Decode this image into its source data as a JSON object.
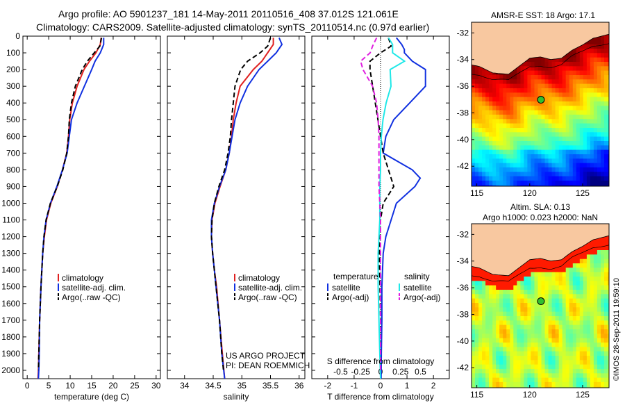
{
  "title": {
    "line1": "Argo profile: AO 5901237_181 14-May-2011 20110516_408 37.012S 121.061E",
    "line2": "Climatology: CARS2009. Satellite-adjusted climatology: synTS_20110514.nc (0.97d earlier)"
  },
  "colors": {
    "climatology": "#e02020",
    "satellite": "#1030e0",
    "argo": "#000000",
    "salinity_satellite": "#20e8e8",
    "salinity_argo": "#e020e0",
    "land": "#f8c8a0"
  },
  "chart_data": [
    {
      "type": "line",
      "name": "temperature",
      "xlabel": "temperature (deg C)",
      "xlim": [
        -1,
        31
      ],
      "xticks": [
        0,
        5,
        10,
        15,
        20,
        25,
        30
      ],
      "ylim": [
        2050,
        0
      ],
      "yticks": [
        0,
        100,
        200,
        300,
        400,
        500,
        600,
        700,
        800,
        900,
        1000,
        1100,
        1200,
        1300,
        1400,
        1500,
        1600,
        1700,
        1800,
        1900,
        2000
      ],
      "legend": [
        "climatology",
        "satellite-adj. clim.",
        "Argo(..raw -QC)"
      ],
      "series": [
        {
          "name": "climatology",
          "style": "solid",
          "color": "climatology",
          "depth": [
            10,
            50,
            100,
            150,
            200,
            300,
            400,
            500,
            600,
            700,
            800,
            900,
            1000,
            1100,
            1200,
            1300,
            1500,
            1700,
            1900,
            2000,
            2050
          ],
          "values": [
            17.2,
            17.0,
            16.0,
            14.5,
            13.2,
            11.6,
            10.5,
            9.9,
            9.6,
            9.2,
            8.2,
            7.0,
            5.5,
            4.5,
            4.0,
            3.6,
            3.2,
            2.9,
            2.7,
            2.6,
            2.5
          ]
        },
        {
          "name": "satellite-adj. clim.",
          "style": "solid",
          "color": "satellite",
          "depth": [
            10,
            50,
            100,
            150,
            200,
            300,
            400,
            500,
            600,
            700,
            800,
            900,
            1000,
            1100,
            1200,
            1300,
            1500,
            1700,
            1900,
            2000,
            2050
          ],
          "values": [
            17.8,
            17.8,
            17.0,
            15.8,
            15.0,
            13.3,
            11.6,
            10.3,
            9.8,
            9.3,
            8.2,
            6.9,
            5.4,
            4.4,
            3.9,
            3.6,
            3.2,
            2.9,
            2.8,
            2.7,
            2.6
          ]
        },
        {
          "name": "Argo(..raw -QC)",
          "style": "dashed",
          "color": "argo",
          "depth": [
            10,
            60,
            100,
            150,
            200,
            300,
            400,
            500,
            600,
            700,
            800,
            900,
            1000,
            1100,
            1200,
            1300,
            1500,
            1700,
            1900,
            2000
          ],
          "values": [
            17.3,
            16.9,
            15.6,
            14.0,
            12.8,
            11.2,
            10.3,
            9.8,
            9.6,
            9.2,
            8.3,
            7.0,
            5.4,
            4.4,
            3.9,
            3.6,
            3.2,
            2.9,
            2.7,
            2.6
          ]
        }
      ]
    },
    {
      "type": "line",
      "name": "salinity",
      "xlabel": "salinity",
      "xlim": [
        33.7,
        36.1
      ],
      "xticks": [
        34,
        34.5,
        35,
        35.5,
        36
      ],
      "xticklabels": [
        "34",
        "34.5",
        "35",
        "35.5",
        "36"
      ],
      "ylim": [
        2050,
        0
      ],
      "legend": [
        "climatology",
        "satellite-adj. clim.",
        "Argo(..raw -QC)"
      ],
      "annotation": [
        "US ARGO PROJECT",
        "PI: DEAN ROEMMICH"
      ],
      "series": [
        {
          "name": "climatology",
          "style": "solid",
          "color": "climatology",
          "depth": [
            10,
            50,
            100,
            150,
            200,
            300,
            400,
            500,
            600,
            700,
            800,
            900,
            1000,
            1100,
            1200,
            1300,
            1400,
            1500,
            1700,
            1900,
            2050
          ],
          "values": [
            35.55,
            35.55,
            35.45,
            35.35,
            35.2,
            34.97,
            34.9,
            34.85,
            34.82,
            34.78,
            34.72,
            34.62,
            34.53,
            34.48,
            34.47,
            34.49,
            34.52,
            34.56,
            34.61,
            34.66,
            34.7
          ]
        },
        {
          "name": "satellite-adj. clim.",
          "style": "solid",
          "color": "satellite",
          "depth": [
            10,
            50,
            100,
            150,
            200,
            300,
            400,
            500,
            600,
            700,
            800,
            900,
            1000,
            1100,
            1200,
            1300,
            1400,
            1500,
            1700,
            1900,
            2050
          ],
          "values": [
            35.65,
            35.7,
            35.6,
            35.45,
            35.3,
            35.1,
            34.97,
            34.88,
            34.83,
            34.78,
            34.72,
            34.61,
            34.52,
            34.47,
            34.47,
            34.49,
            34.52,
            34.55,
            34.61,
            34.65,
            34.7
          ]
        },
        {
          "name": "Argo(..raw -QC)",
          "style": "dashed",
          "color": "argo",
          "depth": [
            10,
            60,
            100,
            150,
            200,
            300,
            400,
            500,
            600,
            700,
            800,
            900,
            1000,
            1100,
            1200,
            1300,
            1500,
            1700,
            1900,
            2000
          ],
          "values": [
            35.5,
            35.45,
            35.32,
            35.1,
            34.98,
            34.88,
            34.85,
            34.82,
            34.8,
            34.76,
            34.7,
            34.6,
            34.52,
            34.48,
            34.47,
            34.49,
            34.55,
            34.61,
            34.65,
            34.68
          ]
        }
      ]
    },
    {
      "type": "line",
      "name": "differences",
      "xlabel": "T difference from climatology",
      "xlabel2": "S difference from climatology",
      "xlim": [
        -2.6,
        2.6
      ],
      "xticks": [
        -2,
        -1,
        0,
        1,
        2
      ],
      "sticks": [
        -0.5,
        -0.25,
        0,
        0.25,
        0.5
      ],
      "sticklabels": [
        "-0.5",
        "-0.25",
        "0",
        "0.25",
        "0.5"
      ],
      "ylim": [
        2050,
        0
      ],
      "legend_temperature": {
        "heading": "temperature",
        "items": [
          "satellite",
          "Argo(-adj)"
        ]
      },
      "legend_salinity": {
        "heading": "salinity",
        "items": [
          "satellite",
          "Argo(-adj)"
        ]
      },
      "series": [
        {
          "name": "temperature satellite",
          "style": "solid",
          "color": "satellite",
          "depth": [
            10,
            50,
            80,
            100,
            150,
            200,
            300,
            400,
            500,
            600,
            700,
            800,
            850,
            900,
            1000,
            1100,
            1200,
            1300,
            1500,
            1700,
            1900,
            2050
          ],
          "values": [
            0.6,
            0.8,
            0.9,
            0.9,
            1.2,
            1.7,
            1.7,
            1.1,
            0.5,
            0.2,
            0.1,
            1.2,
            1.5,
            1.3,
            0.6,
            0.4,
            0.2,
            0.1,
            0.05,
            0.05,
            0.03,
            0.02
          ]
        },
        {
          "name": "temperature Argo(-adj)",
          "style": "dashed",
          "color": "argo",
          "depth": [
            10,
            60,
            100,
            150,
            200,
            300,
            400,
            500,
            600,
            700,
            800,
            900,
            950,
            1000,
            1100,
            1200,
            1300,
            1500,
            1700,
            1900,
            2000
          ],
          "values": [
            0.3,
            0.4,
            0.0,
            -0.4,
            -0.4,
            -0.3,
            -0.2,
            -0.1,
            0.0,
            0.1,
            0.3,
            0.5,
            0.3,
            0.1,
            0.0,
            -0.05,
            -0.05,
            -0.02,
            0.0,
            0.0,
            0.0
          ]
        },
        {
          "name": "salinity satellite",
          "style": "solid",
          "color": "salinity_satellite",
          "depth": [
            10,
            50,
            100,
            150,
            200,
            300,
            400,
            500,
            600,
            700,
            800,
            900,
            1000,
            1100,
            1200,
            1300,
            1500,
            1700,
            1900,
            2050
          ],
          "values": [
            0.1,
            0.15,
            0.15,
            0.3,
            0.12,
            0.13,
            0.07,
            0.03,
            0.01,
            0.0,
            0.0,
            -0.01,
            -0.01,
            -0.01,
            -0.02,
            -0.03,
            -0.03,
            -0.02,
            -0.01,
            0.0
          ]
        },
        {
          "name": "salinity Argo(-adj)",
          "style": "dashed",
          "color": "salinity_argo",
          "depth": [
            10,
            60,
            100,
            150,
            200,
            300,
            400,
            500,
            600,
            700,
            800,
            900,
            1000,
            1100,
            1200,
            1300,
            1500,
            1700,
            1900,
            2000
          ],
          "values": [
            -0.05,
            -0.1,
            -0.13,
            -0.25,
            -0.22,
            -0.1,
            -0.05,
            -0.03,
            -0.02,
            -0.02,
            -0.02,
            -0.02,
            -0.01,
            0.0,
            0.0,
            0.0,
            0.0,
            0.0,
            0.0,
            0.0
          ]
        }
      ]
    },
    {
      "type": "heatmap",
      "name": "sst-map",
      "title": "AMSR-E SST: 18 Argo: 17.1",
      "xlim": [
        114.5,
        127.5
      ],
      "ylim": [
        -43.5,
        -31.2
      ],
      "xticks": [
        115,
        120,
        125
      ],
      "yticks": [
        -32,
        -34,
        -36,
        -38,
        -40,
        -42
      ],
      "marker": {
        "lon": 121.061,
        "lat": -37.012
      }
    },
    {
      "type": "heatmap",
      "name": "sla-map",
      "title_line1": "Altim. SLA: 0.13",
      "title_line2": "Argo h1000: 0.023 h2000: NaN",
      "xlim": [
        114.5,
        127.5
      ],
      "ylim": [
        -43.5,
        -31.2
      ],
      "xticks": [
        115,
        120,
        125
      ],
      "yticks": [
        -32,
        -34,
        -36,
        -38,
        -40,
        -42
      ],
      "marker": {
        "lon": 121.061,
        "lat": -37.012
      }
    }
  ],
  "footer": {
    "credit": "©IMOS 28-Sep-2011 19:59:10"
  }
}
